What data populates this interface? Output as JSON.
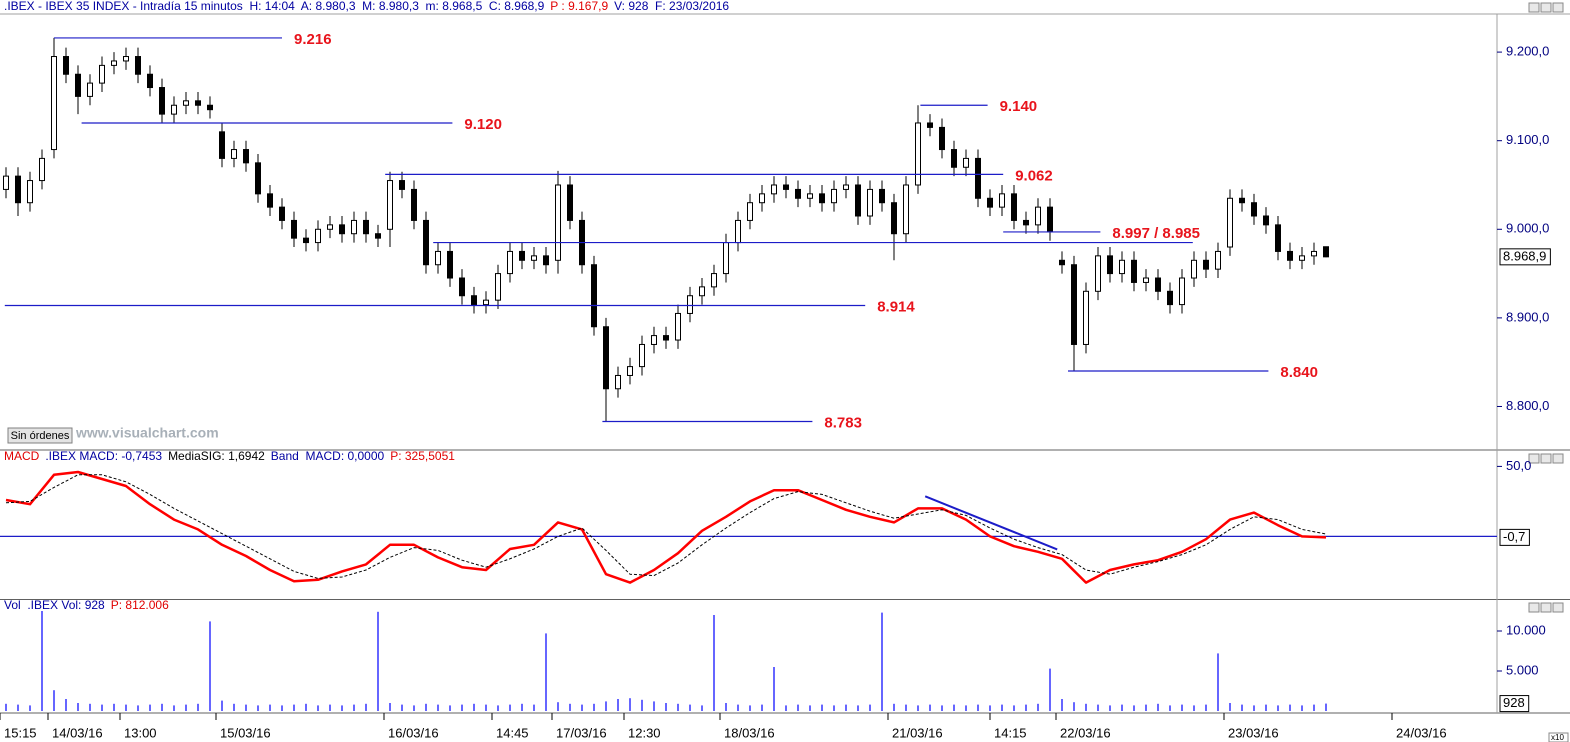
{
  "ui": {
    "button": "Sin órdenes",
    "watermark": "www.visualchart.com"
  },
  "chart_data": [
    {
      "type": "candlestick",
      "header": [
        {
          "text": ".IBEX - IBEX 35 INDEX - Intradía 15 minutos  H: 14:04  A: 8.980,3  M: 8.980,3  m: 8.968,5  C: 8.968,9",
          "color": "#0000a0"
        },
        {
          "text": "P : 9.167,9",
          "color": "#e00000"
        },
        {
          "text": "V: 928  F: 23/03/2016",
          "color": "#0000a0"
        }
      ],
      "xlim": [
        -0.5,
        124.25
      ],
      "ylim": [
        8752,
        9243
      ],
      "yticks": [
        {
          "value": 9200,
          "label": "9.200,0"
        },
        {
          "value": 9100,
          "label": "9.100,0"
        },
        {
          "value": 9000,
          "label": "9.000,0"
        },
        {
          "value": 8900,
          "label": "8.900,0"
        },
        {
          "value": 8800,
          "label": "8.800,0"
        }
      ],
      "last": {
        "value": 8968.9,
        "label": "8.968,9"
      },
      "x": [
        0,
        1,
        2,
        3,
        4,
        5,
        6,
        7,
        8,
        9,
        10,
        11,
        12,
        13,
        14,
        15,
        16,
        17,
        18,
        19,
        20,
        21,
        22,
        23,
        24,
        25,
        26,
        27,
        28,
        29,
        30,
        31,
        32,
        33,
        34,
        35,
        36,
        37,
        38,
        39,
        40,
        41,
        42,
        43,
        44,
        45,
        46,
        47,
        48,
        49,
        50,
        51,
        52,
        53,
        54,
        55,
        56,
        57,
        58,
        59,
        60,
        61,
        62,
        63,
        64,
        65,
        66,
        67,
        68,
        69,
        70,
        71,
        72,
        73,
        74,
        75,
        76,
        77,
        78,
        79,
        80,
        81,
        82,
        83,
        84,
        85,
        86,
        87,
        88,
        89,
        90,
        91,
        92,
        93,
        94,
        95,
        96,
        97,
        98,
        99,
        100,
        101,
        102,
        103,
        104,
        105,
        106,
        107,
        108,
        109,
        110
      ],
      "open": [
        9045,
        9060,
        9030,
        9055,
        9090,
        9195,
        9175,
        9150,
        9165,
        9185,
        9190,
        9195,
        9175,
        9160,
        9130,
        9140,
        9145,
        9140,
        9110,
        9080,
        9090,
        9075,
        9040,
        9025,
        9010,
        8990,
        8985,
        9000,
        9005,
        8995,
        9010,
        8995,
        9000,
        9055,
        9045,
        9010,
        8960,
        8975,
        8945,
        8925,
        8915,
        8920,
        8950,
        8975,
        8965,
        8970,
        8965,
        9050,
        9010,
        8960,
        8890,
        8820,
        8835,
        8845,
        8870,
        8880,
        8875,
        8905,
        8925,
        8935,
        8950,
        8985,
        9010,
        9030,
        9040,
        9050,
        9045,
        9035,
        9040,
        9030,
        9045,
        9050,
        9015,
        9045,
        9030,
        8995,
        9050,
        9120,
        9115,
        9090,
        9070,
        9080,
        9035,
        9025,
        9040,
        9010,
        9005,
        9025,
        8965,
        8960,
        8870,
        8930,
        8970,
        8950,
        8965,
        8940,
        8945,
        8930,
        8915,
        8945,
        8965,
        8955,
        8980,
        9035,
        9030,
        9015,
        9005,
        8975,
        8965,
        8970,
        8980.3
      ],
      "high": [
        9070,
        9070,
        9065,
        9090,
        9216,
        9205,
        9185,
        9175,
        9195,
        9200,
        9205,
        9205,
        9185,
        9170,
        9150,
        9155,
        9155,
        9150,
        9120,
        9100,
        9100,
        9085,
        9050,
        9035,
        9020,
        9000,
        9010,
        9015,
        9015,
        9020,
        9020,
        9005,
        9065,
        9065,
        9055,
        9020,
        8985,
        8985,
        8955,
        8935,
        8930,
        8960,
        8985,
        8985,
        8980,
        8980,
        9066,
        9060,
        9020,
        8970,
        8900,
        8845,
        8855,
        8880,
        8890,
        8890,
        8915,
        8935,
        8945,
        8960,
        8995,
        9020,
        9040,
        9050,
        9060,
        9060,
        9055,
        9050,
        9050,
        9055,
        9060,
        9060,
        9055,
        9055,
        9040,
        9060,
        9140,
        9130,
        9125,
        9100,
        9090,
        9090,
        9045,
        9050,
        9050,
        9020,
        9035,
        9035,
        8975,
        8970,
        8940,
        8980,
        8980,
        8975,
        8975,
        8955,
        8955,
        8940,
        8955,
        8975,
        8975,
        8985,
        9045,
        9045,
        9040,
        9025,
        9015,
        8985,
        8980,
        8985,
        8980.3
      ],
      "low": [
        9035,
        9015,
        9020,
        9045,
        9080,
        9165,
        9130,
        9140,
        9155,
        9175,
        9180,
        9165,
        9150,
        9120,
        9120,
        9130,
        9130,
        9125,
        9070,
        9070,
        9065,
        9030,
        9015,
        9000,
        8980,
        8975,
        8975,
        8990,
        8985,
        8985,
        8985,
        8980,
        8980,
        9035,
        9000,
        8950,
        8950,
        8935,
        8915,
        8905,
        8905,
        8910,
        8940,
        8955,
        8955,
        8950,
        8950,
        9000,
        8950,
        8880,
        8783,
        8810,
        8825,
        8835,
        8860,
        8865,
        8865,
        8895,
        8915,
        8925,
        8940,
        8975,
        9000,
        9020,
        9030,
        9035,
        9025,
        9025,
        9020,
        9020,
        9035,
        9005,
        9005,
        9020,
        8965,
        8985,
        9040,
        9105,
        9080,
        9060,
        9060,
        9025,
        9015,
        9015,
        9000,
        8995,
        8995,
        8987,
        8950,
        8840,
        8860,
        8920,
        8940,
        8940,
        8930,
        8930,
        8920,
        8905,
        8905,
        8935,
        8945,
        8945,
        8970,
        9020,
        9005,
        8995,
        8965,
        8955,
        8955,
        8960,
        8968.5
      ],
      "close": [
        9060,
        9030,
        9055,
        9080,
        9195,
        9175,
        9150,
        9165,
        9185,
        9190,
        9195,
        9175,
        9160,
        9130,
        9140,
        9145,
        9140,
        9135,
        9080,
        9090,
        9075,
        9040,
        9025,
        9010,
        8990,
        8985,
        9000,
        9005,
        8995,
        9010,
        8995,
        8990,
        9055,
        9045,
        9010,
        8960,
        8975,
        8945,
        8925,
        8915,
        8920,
        8950,
        8975,
        8965,
        8970,
        8960,
        9050,
        9010,
        8960,
        8890,
        8820,
        8835,
        8845,
        8870,
        8880,
        8875,
        8905,
        8925,
        8935,
        8950,
        8985,
        9010,
        9030,
        9040,
        9050,
        9045,
        9035,
        9040,
        9030,
        9045,
        9050,
        9015,
        9045,
        9030,
        8995,
        9050,
        9120,
        9115,
        9090,
        9070,
        9080,
        9035,
        9025,
        9040,
        9010,
        9005,
        9025,
        8997,
        8960,
        8870,
        8930,
        8970,
        8950,
        8965,
        8940,
        8945,
        8930,
        8915,
        8945,
        8965,
        8955,
        8975,
        9035,
        9030,
        9015,
        9005,
        8975,
        8965,
        8970,
        8975,
        8968.9
      ],
      "up_color": "#ffffff",
      "down_color": "#000000",
      "level_color": "#1c1cc8",
      "level_label_color": "#e8141c",
      "levels": [
        {
          "label": "9.216",
          "values": [
            9216
          ],
          "spans": [
            [
              4,
              23
            ]
          ]
        },
        {
          "label": "9.120",
          "values": [
            9120
          ],
          "spans": [
            [
              6.3,
              37.2
            ]
          ]
        },
        {
          "label": "9.140",
          "values": [
            9140
          ],
          "spans": [
            [
              76.2,
              81.8
            ]
          ]
        },
        {
          "label": "9.062",
          "values": [
            9062
          ],
          "spans": [
            [
              31.6,
              83.1
            ]
          ]
        },
        {
          "label": "8.997 / 8.985",
          "values": [
            8997,
            8985
          ],
          "spans": [
            [
              83.1,
              91.2
            ],
            [
              35.6,
              98.9
            ]
          ]
        },
        {
          "label": "8.914",
          "values": [
            8914
          ],
          "spans": [
            [
              -0.1,
              71.6
            ]
          ]
        },
        {
          "label": "8.783",
          "values": [
            8783
          ],
          "spans": [
            [
              49.7,
              67.2
            ]
          ]
        },
        {
          "label": "8.840",
          "values": [
            8840
          ],
          "spans": [
            [
              88.5,
              105.2
            ]
          ]
        }
      ]
    },
    {
      "type": "line",
      "header": [
        {
          "text": "MACD",
          "color": "#e00000"
        },
        {
          "text": ".IBEX MACD: -0,7453",
          "color": "#0000a0"
        },
        {
          "text": "MediaSIG: 1,6942",
          "color": "#000000"
        },
        {
          "text": "Band  MACD: 0,0000",
          "color": "#0000a0"
        },
        {
          "text": "P: 325,5051",
          "color": "#e00000"
        }
      ],
      "xlim": [
        -0.5,
        124.25
      ],
      "ylim": [
        -44,
        61
      ],
      "yticks": [
        {
          "value": 50,
          "label": "50,0"
        }
      ],
      "last": {
        "value": -0.7,
        "label": "-0,7"
      },
      "band": 0,
      "band_color": "#1c1cc8",
      "trendline": {
        "x": [
          76.6,
          87.6
        ],
        "values": [
          28.6,
          -9.3
        ],
        "color": "#1c1cc8"
      },
      "x": [
        0,
        2,
        4,
        6,
        8,
        10,
        12,
        14,
        16,
        18,
        20,
        22,
        24,
        26,
        28,
        30,
        32,
        34,
        36,
        38,
        40,
        42,
        44,
        46,
        48,
        50,
        52,
        54,
        56,
        58,
        60,
        62,
        64,
        66,
        68,
        70,
        72,
        74,
        76,
        78,
        80,
        82,
        84,
        86,
        88,
        90,
        92,
        94,
        96,
        98,
        100,
        102,
        104,
        106,
        108,
        110
      ],
      "series": [
        {
          "color": "#ff0000",
          "dashed": false,
          "values": [
            26,
            23,
            44,
            46,
            41,
            36,
            23,
            12,
            5,
            -6,
            -14,
            -24,
            -32,
            -31,
            -25,
            -20,
            -6,
            -6,
            -15,
            -22,
            -24,
            -9,
            -6,
            10,
            5,
            -27,
            -33,
            -24,
            -12,
            4,
            14,
            25,
            33,
            33,
            26,
            19,
            14,
            10,
            20,
            20,
            12,
            0,
            -7,
            -11,
            -16,
            -33,
            -24,
            -20,
            -17,
            -11,
            -2,
            12,
            17,
            8,
            0,
            -0.7
          ]
        },
        {
          "color": "#000000",
          "dashed": true,
          "values": [
            24,
            25,
            35,
            44,
            44,
            39,
            30,
            20,
            11,
            2,
            -7,
            -16,
            -25,
            -30,
            -29,
            -24,
            -15,
            -8,
            -10,
            -17,
            -22,
            -16,
            -9,
            0,
            6,
            -10,
            -27,
            -28,
            -19,
            -6,
            6,
            17,
            27,
            32,
            30,
            24,
            18,
            13,
            16,
            19,
            15,
            6,
            -2,
            -8,
            -13,
            -24,
            -27,
            -22,
            -18,
            -13,
            -6,
            5,
            14,
            12,
            5,
            1.6942
          ]
        }
      ]
    },
    {
      "type": "bar",
      "header": [
        {
          "text": "Vol  .IBEX Vol: 928",
          "color": "#0000a0"
        },
        {
          "text": "P: 812.006",
          "color": "#e00000"
        }
      ],
      "xlim": [
        -0.5,
        124.25
      ],
      "ylim": [
        0,
        13750
      ],
      "yticks": [
        {
          "value": 10000,
          "label": "10.000"
        },
        {
          "value": 5000,
          "label": "5.000"
        }
      ],
      "last": 928,
      "axis_multiplier": "x10",
      "color": "#0000ff",
      "x": [
        0,
        1,
        2,
        3,
        4,
        5,
        6,
        7,
        8,
        9,
        10,
        11,
        12,
        13,
        14,
        15,
        16,
        17,
        18,
        19,
        20,
        21,
        22,
        23,
        24,
        25,
        26,
        27,
        28,
        29,
        30,
        31,
        32,
        33,
        34,
        35,
        36,
        37,
        38,
        39,
        40,
        41,
        42,
        43,
        44,
        45,
        46,
        47,
        48,
        49,
        50,
        51,
        52,
        53,
        54,
        55,
        56,
        57,
        58,
        59,
        60,
        61,
        62,
        63,
        64,
        65,
        66,
        67,
        68,
        69,
        70,
        71,
        72,
        73,
        74,
        75,
        76,
        77,
        78,
        79,
        80,
        81,
        82,
        83,
        84,
        85,
        86,
        87,
        88,
        89,
        90,
        91,
        92,
        93,
        94,
        95,
        96,
        97,
        98,
        99,
        100,
        101,
        102,
        103,
        104,
        105,
        106,
        107,
        108,
        109,
        110
      ],
      "values": [
        900,
        800,
        700,
        12500,
        2600,
        1500,
        1000,
        900,
        800,
        900,
        800,
        700,
        800,
        900,
        700,
        800,
        900,
        11200,
        1300,
        900,
        800,
        700,
        800,
        700,
        800,
        900,
        700,
        800,
        700,
        800,
        900,
        12400,
        1000,
        800,
        700,
        900,
        800,
        700,
        800,
        900,
        800,
        700,
        800,
        900,
        800,
        9700,
        1100,
        900,
        800,
        900,
        1200,
        1500,
        1600,
        1400,
        1200,
        1000,
        900,
        800,
        700,
        12000,
        1000,
        800,
        700,
        800,
        5500,
        700,
        800,
        700,
        800,
        700,
        800,
        700,
        800,
        12300,
        900,
        800,
        700,
        800,
        700,
        800,
        700,
        800,
        700,
        800,
        700,
        800,
        900,
        5300,
        1500,
        1100,
        900,
        800,
        700,
        800,
        700,
        800,
        900,
        700,
        800,
        700,
        800,
        7200,
        1000,
        800,
        700,
        800,
        700,
        800,
        700,
        800,
        928
      ],
      "xticks": [
        {
          "value": -0.5,
          "label": "15:15"
        },
        {
          "value": 3.5,
          "label": "14/03/16"
        },
        {
          "value": 9.5,
          "label": "13:00"
        },
        {
          "value": 17.5,
          "label": "15/03/16"
        },
        {
          "value": 31.5,
          "label": "16/03/16"
        },
        {
          "value": 40.5,
          "label": "14:45"
        },
        {
          "value": 45.5,
          "label": "17/03/16"
        },
        {
          "value": 51.5,
          "label": "12:30"
        },
        {
          "value": 59.5,
          "label": "18/03/16"
        },
        {
          "value": 73.5,
          "label": "21/03/16"
        },
        {
          "value": 82,
          "label": "14:15"
        },
        {
          "value": 87.5,
          "label": "22/03/16"
        },
        {
          "value": 101.5,
          "label": "23/03/16"
        },
        {
          "value": 115.5,
          "label": "24/03/16"
        }
      ]
    }
  ]
}
